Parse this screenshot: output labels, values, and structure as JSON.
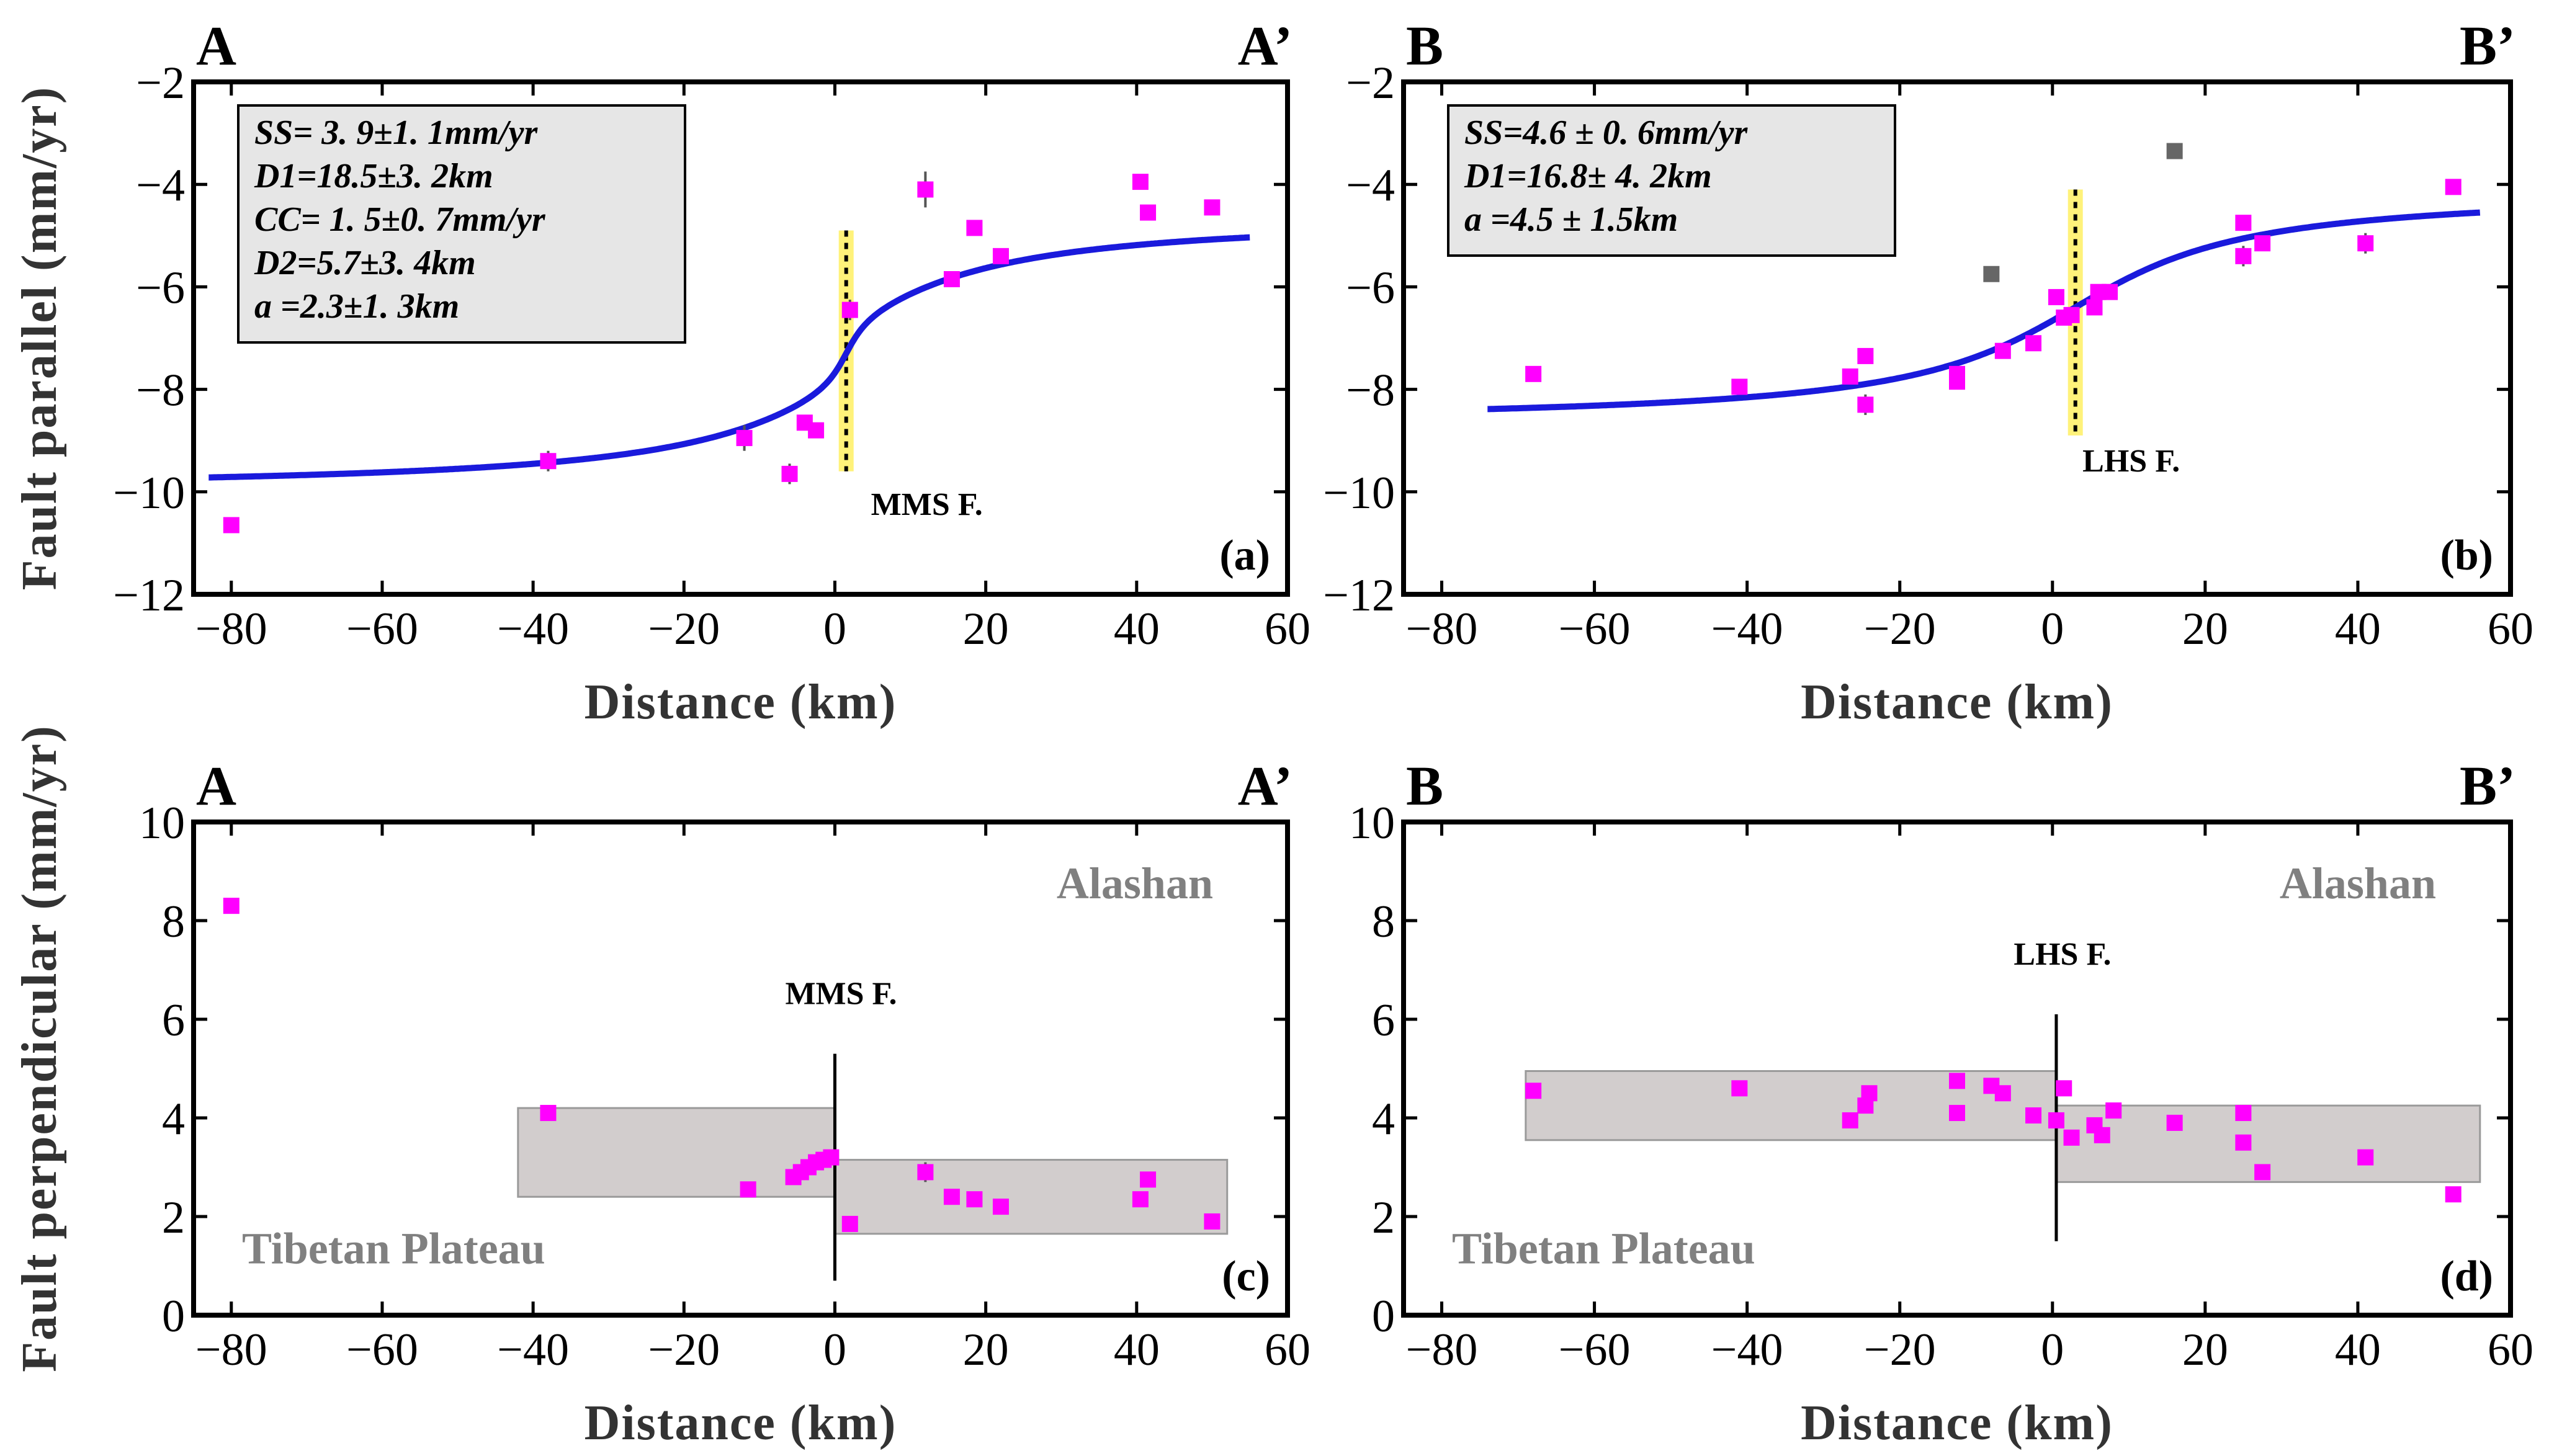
{
  "colors": {
    "points": "#ff00ff",
    "outliers": "#666666",
    "curve": "#1a1adc",
    "band": "#d2cdcd",
    "fault_marker": "#fff27a"
  },
  "chart_data": [
    {
      "id": "a",
      "type": "scatter",
      "section_left": "A",
      "section_right": "A’",
      "panel_label": "(a)",
      "ylabel": "Fault parallel (mm/yr)",
      "xlabel": "Distance (km)",
      "xlim": [
        -85,
        60
      ],
      "ylim": [
        -12,
        -2
      ],
      "xticks": [
        -80,
        -60,
        -40,
        -20,
        0,
        20,
        40,
        60
      ],
      "yticks": [
        -2,
        -4,
        -6,
        -8,
        -10,
        -12
      ],
      "params": [
        "SS= 3. 9±1. 1mm/yr",
        "D1=18.5±3. 2km",
        "CC= 1. 5±0. 7mm/yr",
        "D2=5.7±3. 4km",
        " a =2.3±1. 3km"
      ],
      "fault": {
        "label": "MMS F.",
        "x": 1.5,
        "style": "yellow-dotted",
        "y_range": [
          -9.6,
          -4.9
        ]
      },
      "curve": {
        "model": "two-fault screw",
        "center": 1.5,
        "mean": -7.3,
        "ss": 3.9,
        "d1": 18.5,
        "cc": 1.5,
        "d2": 5.7,
        "a": 2.3,
        "xrange": [
          -83,
          55
        ]
      },
      "points": [
        {
          "x": -80,
          "y": -10.65,
          "err": 0.1
        },
        {
          "x": -38,
          "y": -9.4,
          "err": 0.2
        },
        {
          "x": -12,
          "y": -8.95,
          "err": 0.25
        },
        {
          "x": -6,
          "y": -9.65,
          "err": 0.2
        },
        {
          "x": -4,
          "y": -8.65,
          "err": 0.15
        },
        {
          "x": -2.5,
          "y": -8.8,
          "err": 0.15
        },
        {
          "x": 2,
          "y": -6.45,
          "err": 0.2
        },
        {
          "x": 12,
          "y": -4.1,
          "err": 0.35
        },
        {
          "x": 15.5,
          "y": -5.85,
          "err": 0.15
        },
        {
          "x": 18.5,
          "y": -4.85,
          "err": 0.15
        },
        {
          "x": 22,
          "y": -5.4,
          "err": 0.15
        },
        {
          "x": 40.5,
          "y": -3.95,
          "err": 0.12
        },
        {
          "x": 41.5,
          "y": -4.55,
          "err": 0.12
        },
        {
          "x": 50,
          "y": -4.45,
          "err": 0.15
        }
      ],
      "outliers": []
    },
    {
      "id": "b",
      "type": "scatter",
      "section_left": "B",
      "section_right": "B’",
      "panel_label": "(b)",
      "ylabel": "",
      "xlabel": "Distance (km)",
      "xlim": [
        -85,
        60
      ],
      "ylim": [
        -12,
        -2
      ],
      "xticks": [
        -80,
        -60,
        -40,
        -20,
        0,
        20,
        40,
        60
      ],
      "yticks": [
        -2,
        -4,
        -6,
        -8,
        -10,
        -12
      ],
      "params": [
        "SS=4.6 ± 0. 6mm/yr",
        "D1=16.8± 4. 2km",
        " a =4.5 ± 1.5km"
      ],
      "fault": {
        "label": "LHS F.",
        "x": 3,
        "style": "yellow-dotted",
        "y_range": [
          -8.9,
          -4.1
        ]
      },
      "curve": {
        "model": "screw",
        "center": 3,
        "mean": -6.4,
        "ss": 4.6,
        "d1": 16.8,
        "xrange": [
          -74,
          56
        ]
      },
      "points": [
        {
          "x": -68,
          "y": -7.7,
          "err": 0.1
        },
        {
          "x": -41,
          "y": -7.95,
          "err": 0.15
        },
        {
          "x": -26.5,
          "y": -7.75,
          "err": 0.12
        },
        {
          "x": -24.5,
          "y": -7.35,
          "err": 0.12
        },
        {
          "x": -24.5,
          "y": -8.3,
          "err": 0.2
        },
        {
          "x": -12.5,
          "y": -7.7,
          "err": 0.12
        },
        {
          "x": -12.5,
          "y": -7.85,
          "err": 0.12
        },
        {
          "x": -6.5,
          "y": -7.25,
          "err": 0.12
        },
        {
          "x": -2.5,
          "y": -7.1,
          "err": 0.15
        },
        {
          "x": 0.5,
          "y": -6.2,
          "err": 0.12
        },
        {
          "x": 1.5,
          "y": -6.6,
          "err": 0.12
        },
        {
          "x": 2.5,
          "y": -6.55,
          "err": 0.12
        },
        {
          "x": 5.5,
          "y": -6.4,
          "err": 0.15
        },
        {
          "x": 6,
          "y": -6.1,
          "err": 0.15
        },
        {
          "x": 7.5,
          "y": -6.1,
          "err": 0.12
        },
        {
          "x": 25,
          "y": -4.75,
          "err": 0.15
        },
        {
          "x": 25,
          "y": -5.4,
          "err": 0.2
        },
        {
          "x": 27.5,
          "y": -5.15,
          "err": 0.15
        },
        {
          "x": 41,
          "y": -5.15,
          "err": 0.2
        },
        {
          "x": 52.5,
          "y": -4.05,
          "err": 0.15
        }
      ],
      "outliers": [
        {
          "x": -8,
          "y": -5.75,
          "err": 0.12
        },
        {
          "x": 16,
          "y": -3.35,
          "err": 0.1
        }
      ]
    },
    {
      "id": "c",
      "type": "scatter",
      "section_left": "A",
      "section_right": "A’",
      "panel_label": "(c)",
      "ylabel": "Fault perpendicular (mm/yr)",
      "xlabel": "Distance (km)",
      "xlim": [
        -85,
        60
      ],
      "ylim": [
        0,
        10
      ],
      "xticks": [
        -80,
        -60,
        -40,
        -20,
        0,
        20,
        40,
        60
      ],
      "yticks": [
        0,
        2,
        4,
        6,
        8,
        10
      ],
      "region_top": "Alashan",
      "region_bottom": "Tibetan Plateau",
      "fault": {
        "label": "MMS F.",
        "x": 0,
        "style": "line",
        "y_range": [
          0.7,
          5.3
        ]
      },
      "bands": [
        {
          "x0": -42,
          "x1": 0,
          "y0": 2.4,
          "y1": 4.2
        },
        {
          "x0": 0,
          "x1": 52,
          "y0": 1.65,
          "y1": 3.15
        }
      ],
      "points": [
        {
          "x": -80,
          "y": 8.3,
          "err": 0.12
        },
        {
          "x": -38,
          "y": 4.1,
          "err": 0.1
        },
        {
          "x": -11.5,
          "y": 2.55,
          "err": 0.1
        },
        {
          "x": -5.5,
          "y": 2.8,
          "err": 0.1
        },
        {
          "x": -4.5,
          "y": 2.9,
          "err": 0.1
        },
        {
          "x": -3.5,
          "y": 3.0,
          "err": 0.1
        },
        {
          "x": -2.5,
          "y": 3.1,
          "err": 0.1
        },
        {
          "x": -1.5,
          "y": 3.15,
          "err": 0.1
        },
        {
          "x": -0.5,
          "y": 3.2,
          "err": 0.1
        },
        {
          "x": 2,
          "y": 1.85,
          "err": 0.1
        },
        {
          "x": 12,
          "y": 2.9,
          "err": 0.2
        },
        {
          "x": 15.5,
          "y": 2.4,
          "err": 0.1
        },
        {
          "x": 18.5,
          "y": 2.35,
          "err": 0.1
        },
        {
          "x": 22,
          "y": 2.2,
          "err": 0.15
        },
        {
          "x": 40.5,
          "y": 2.35,
          "err": 0.15
        },
        {
          "x": 41.5,
          "y": 2.75,
          "err": 0.12
        },
        {
          "x": 50,
          "y": 1.9,
          "err": 0.12
        }
      ],
      "outliers": []
    },
    {
      "id": "d",
      "type": "scatter",
      "section_left": "B",
      "section_right": "B’",
      "panel_label": "(d)",
      "ylabel": "",
      "xlabel": "Distance (km)",
      "xlim": [
        -85,
        60
      ],
      "ylim": [
        0,
        10
      ],
      "xticks": [
        -80,
        -60,
        -40,
        -20,
        0,
        20,
        40,
        60
      ],
      "yticks": [
        0,
        2,
        4,
        6,
        8,
        10
      ],
      "region_top": "Alashan",
      "region_bottom": "Tibetan Plateau",
      "fault": {
        "label": "LHS F.",
        "x": 0.5,
        "style": "line",
        "y_range": [
          1.5,
          6.1
        ]
      },
      "bands": [
        {
          "x0": -69,
          "x1": 0.5,
          "y0": 3.55,
          "y1": 4.95
        },
        {
          "x0": 0.5,
          "x1": 56,
          "y0": 2.7,
          "y1": 4.25
        }
      ],
      "points": [
        {
          "x": -68,
          "y": 4.55,
          "err": 0.08
        },
        {
          "x": -41,
          "y": 4.6,
          "err": 0.08
        },
        {
          "x": -26.5,
          "y": 3.95,
          "err": 0.08
        },
        {
          "x": -24.5,
          "y": 4.25,
          "err": 0.08
        },
        {
          "x": -24,
          "y": 4.5,
          "err": 0.08
        },
        {
          "x": -12.5,
          "y": 4.75,
          "err": 0.08
        },
        {
          "x": -12.5,
          "y": 4.1,
          "err": 0.08
        },
        {
          "x": -8,
          "y": 4.65,
          "err": 0.08
        },
        {
          "x": -6.5,
          "y": 4.5,
          "err": 0.08
        },
        {
          "x": -2.5,
          "y": 4.05,
          "err": 0.08
        },
        {
          "x": 0.5,
          "y": 3.95,
          "err": 0.08
        },
        {
          "x": 1.5,
          "y": 4.6,
          "err": 0.08
        },
        {
          "x": 2.5,
          "y": 3.6,
          "err": 0.08
        },
        {
          "x": 5.5,
          "y": 3.85,
          "err": 0.08
        },
        {
          "x": 6.5,
          "y": 3.65,
          "err": 0.08
        },
        {
          "x": 8,
          "y": 4.15,
          "err": 0.08
        },
        {
          "x": 16,
          "y": 3.9,
          "err": 0.08
        },
        {
          "x": 25,
          "y": 4.1,
          "err": 0.08
        },
        {
          "x": 25,
          "y": 3.5,
          "err": 0.08
        },
        {
          "x": 27.5,
          "y": 2.9,
          "err": 0.08
        },
        {
          "x": 41,
          "y": 3.2,
          "err": 0.08
        },
        {
          "x": 52.5,
          "y": 2.45,
          "err": 0.08
        }
      ],
      "outliers": []
    }
  ]
}
